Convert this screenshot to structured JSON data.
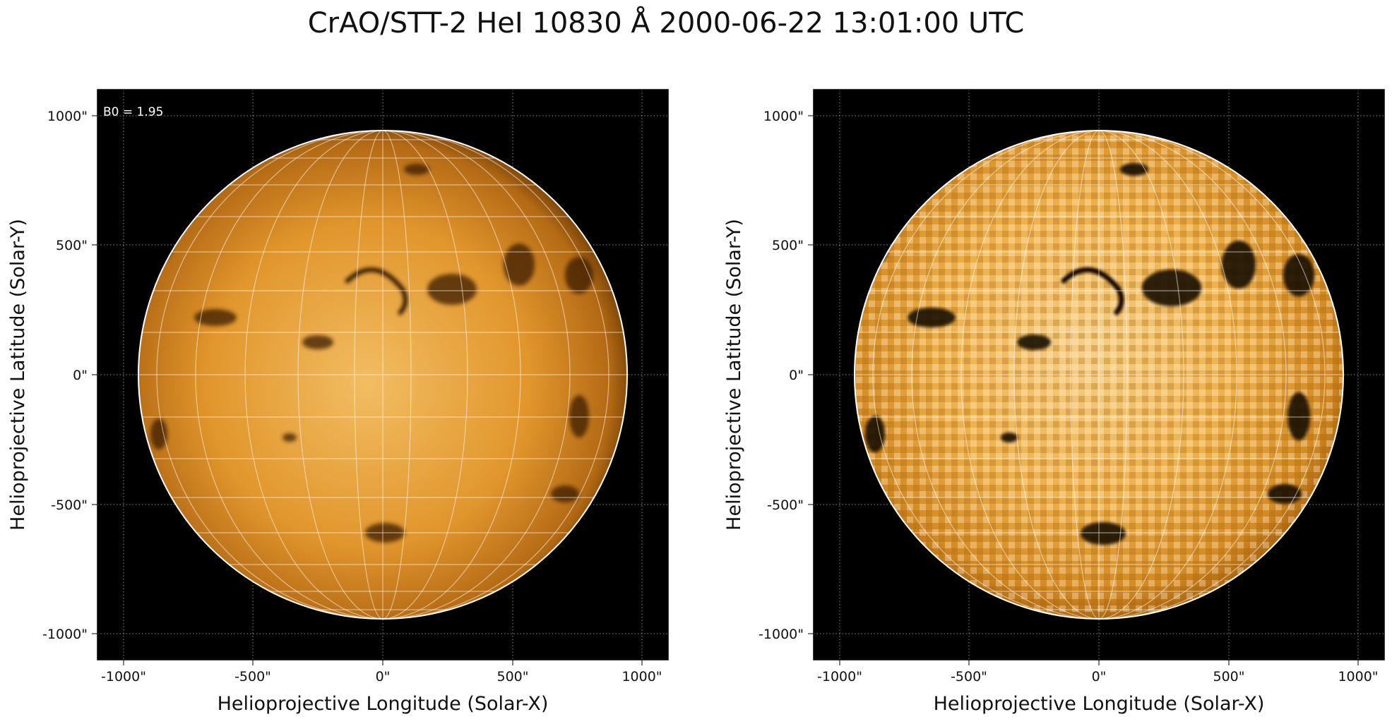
{
  "title": "CrAO/STT-2 HeI 10830 Å 2000-06-22 13:01:00 UTC",
  "panels": [
    {
      "id": "left",
      "annotation": "B0 = 1.95",
      "xlabel": "Helioprojective Longitude (Solar-X)",
      "ylabel": "Helioprojective Latitude (Solar-Y)",
      "xticks": [
        "-1000\"",
        "-500\"",
        "0\"",
        "500\"",
        "1000\""
      ],
      "yticks": [
        "1000\"",
        "500\"",
        "0\"",
        "-500\"",
        "-1000\""
      ],
      "rendering": "raw"
    },
    {
      "id": "right",
      "annotation": "",
      "xlabel": "Helioprojective Longitude (Solar-X)",
      "ylabel": "Helioprojective Latitude (Solar-Y)",
      "xticks": [
        "-1000\"",
        "-500\"",
        "0\"",
        "500\"",
        "1000\""
      ],
      "yticks": [
        "1000\"",
        "500\"",
        "0\"",
        "-500\"",
        "-1000\""
      ],
      "rendering": "contrast-enhanced"
    }
  ],
  "axes": {
    "xlim": [
      -1100,
      1100
    ],
    "ylim": [
      -1100,
      1100
    ],
    "tick_values": [
      -1000,
      -500,
      0,
      500,
      1000
    ],
    "solar_radius_arcsec": 945
  },
  "colors": {
    "background": "#000000",
    "limb": "#ffffff",
    "grid": "#ffffff",
    "disk_light": "#f0b04a",
    "disk_dark": "#2a1400"
  }
}
